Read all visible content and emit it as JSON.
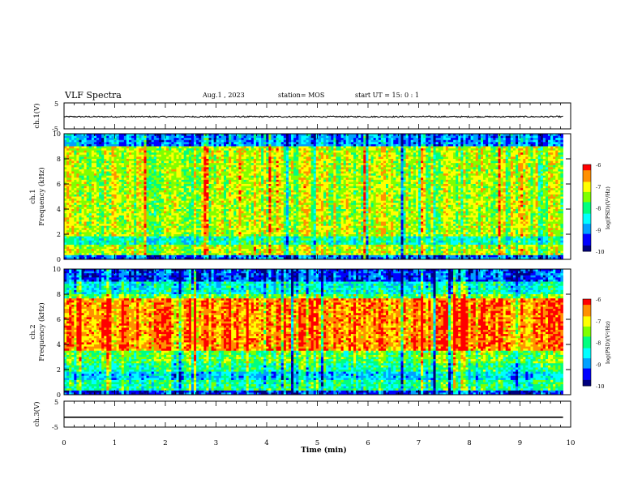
{
  "header": {
    "title": "VLF Spectra",
    "date": "Aug.1 , 2023",
    "station": "station= MOS",
    "start": "start UT = 15: 0 : 1"
  },
  "chart_data": [
    {
      "type": "line",
      "panel": "ch1-waveform",
      "ylabel": "ch.1(V)",
      "ylim": [
        -5,
        5
      ],
      "yticks": [
        "5",
        "-5"
      ],
      "xlim": [
        0,
        10
      ],
      "series": [
        {
          "values_description_level": -0.3
        }
      ]
    },
    {
      "type": "heatmap",
      "panel": "ch1-spectrogram",
      "ylabel": "ch.1 Frequency (kHz)",
      "ylim": [
        0,
        10
      ],
      "yticks": [
        "0",
        "2",
        "4",
        "6",
        "8",
        "10"
      ],
      "xlim": [
        0,
        9.8
      ],
      "colorbar": {
        "label": "log(PSD)(V²/Hz)",
        "range": [
          -10,
          -6
        ],
        "ticks": [
          "-6",
          "-7",
          "-8",
          "-9",
          "-10"
        ]
      }
    },
    {
      "type": "heatmap",
      "panel": "ch2-spectrogram",
      "ylabel": "ch.2 Frequency (kHz)",
      "ylim": [
        0,
        10
      ],
      "yticks": [
        "0",
        "2",
        "4",
        "6",
        "8",
        "10"
      ],
      "xlim": [
        0,
        9.8
      ],
      "colorbar": {
        "label": "log(PSD)(V²/Hz)",
        "range": [
          -10,
          -6
        ],
        "ticks": [
          "-6",
          "-7",
          "-8",
          "-9",
          "-10"
        ]
      }
    },
    {
      "type": "line",
      "panel": "ch3-waveform",
      "ylabel": "ch.3(V)",
      "ylim": [
        -5,
        5
      ],
      "yticks": [
        "5",
        "-5"
      ],
      "xlim": [
        0,
        10
      ],
      "series": [
        {
          "values_description_level": -1.2
        }
      ]
    }
  ],
  "xaxis": {
    "label": "Time (min)",
    "ticks": [
      "0",
      "1",
      "2",
      "3",
      "4",
      "5",
      "6",
      "7",
      "8",
      "9",
      "10"
    ]
  },
  "colors": {
    "cmap": [
      "#00007f",
      "#0000ff",
      "#00a0ff",
      "#00ffff",
      "#00ff7f",
      "#7fff00",
      "#ffff00",
      "#ff9000",
      "#ff0000"
    ]
  }
}
